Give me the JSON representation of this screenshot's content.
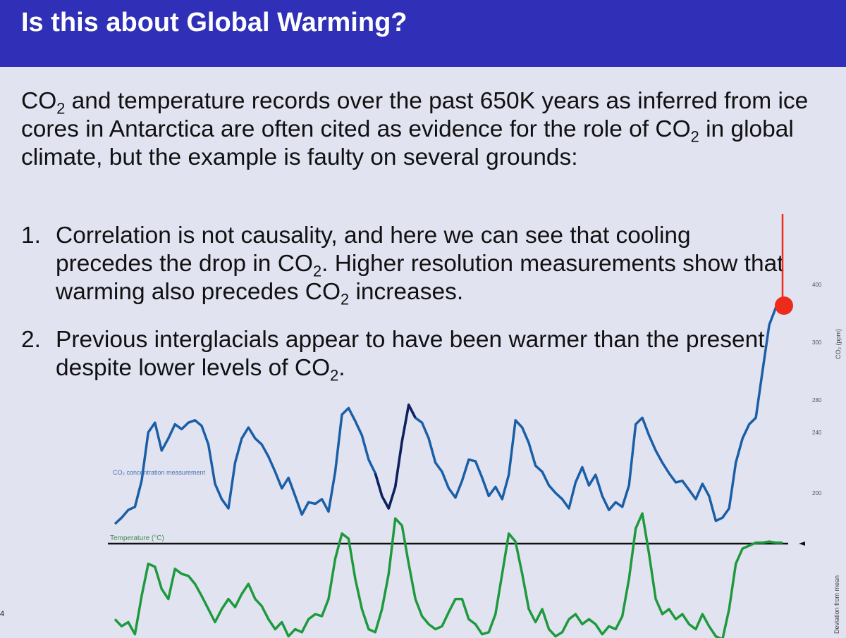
{
  "slide": {
    "title": "Is this about Global Warming?",
    "intro": {
      "p1": "CO",
      "s1": "2",
      "p2": " and temperature records over the past 650K years as inferred from ice cores in Antarctica are often cited as evidence for the role of CO",
      "s2": "2",
      "p3": " in global climate, but the example is faulty on several grounds:"
    },
    "items": [
      {
        "num": "1.",
        "p1": "Correlation is not causality, and here we can see that cooling precedes the drop in CO",
        "s1": "2",
        "p2": ". Higher resolution measurements show that warming also precedes CO",
        "s2": "2",
        "p3": " increases."
      },
      {
        "num": "2.",
        "p1": "Previous interglacials appear to have been warmer than the present despite lower levels of CO",
        "s1": "2",
        "p2": "."
      }
    ],
    "page_number": "4"
  },
  "colors": {
    "title_bar": "#2f2fb7",
    "background": "#e2e3f1",
    "co2_line": "#1a5fa6",
    "co2_line_dark": "#10205e",
    "temperature_line": "#1d9a3c",
    "current_marker": "#ee2a1a",
    "zero_line": "#111111"
  },
  "chart_data": {
    "type": "line",
    "co2_series_label": "CO₂ concentration measurement",
    "temperature_series_label": "Temperature (°C)",
    "right_axis_label_co2": "CO₂ (ppm)",
    "right_axis_label_temp": "Deviation from mean",
    "co2_axis_ticks": [
      400,
      300,
      280,
      240,
      200
    ],
    "x_range": [
      0,
      100
    ],
    "co2": {
      "x": [
        0,
        1,
        2,
        3,
        4,
        5,
        6,
        7,
        8,
        9,
        10,
        11,
        12,
        13,
        14,
        15,
        16,
        17,
        18,
        19,
        20,
        21,
        22,
        23,
        24,
        25,
        26,
        27,
        28,
        29,
        30,
        31,
        32,
        33,
        34,
        35,
        36,
        37,
        38,
        39,
        40,
        41,
        42,
        43,
        44,
        45,
        46,
        47,
        48,
        49,
        50,
        51,
        52,
        53,
        54,
        55,
        56,
        57,
        58,
        59,
        60,
        61,
        62,
        63,
        64,
        65,
        66,
        67,
        68,
        69,
        70,
        71,
        72,
        73,
        74,
        75,
        76,
        77,
        78,
        79,
        80,
        81,
        82,
        83,
        84,
        85,
        86,
        87,
        88,
        89,
        90,
        91,
        92,
        93,
        94,
        95,
        96,
        97,
        98,
        99,
        100
      ],
      "y": [
        180,
        184,
        189,
        191,
        208,
        240,
        252,
        228,
        236,
        250,
        244,
        252,
        255,
        248,
        232,
        206,
        196,
        190,
        220,
        236,
        246,
        236,
        232,
        224,
        214,
        203,
        210,
        198,
        186,
        194,
        193,
        196,
        188,
        214,
        262,
        270,
        254,
        238,
        222,
        213,
        198,
        190,
        204,
        234,
        274,
        258,
        252,
        236,
        220,
        214,
        203,
        197,
        208,
        222,
        221,
        210,
        198,
        204,
        196,
        212,
        255,
        246,
        233,
        218,
        214,
        205,
        200,
        196,
        190,
        207,
        217,
        205,
        212,
        198,
        189,
        194,
        191,
        205,
        250,
        258,
        238,
        228,
        220,
        213,
        207,
        208,
        202,
        196,
        206,
        198,
        182,
        184,
        190,
        220,
        236,
        250,
        258,
        290,
        330,
        360,
        375
      ],
      "highlight_dark_x_range": [
        39,
        45
      ]
    },
    "temperature": {
      "x": [
        0,
        1,
        2,
        3,
        4,
        5,
        6,
        7,
        8,
        9,
        10,
        11,
        12,
        13,
        14,
        15,
        16,
        17,
        18,
        19,
        20,
        21,
        22,
        23,
        24,
        25,
        26,
        27,
        28,
        29,
        30,
        31,
        32,
        33,
        34,
        35,
        36,
        37,
        38,
        39,
        40,
        41,
        42,
        43,
        44,
        45,
        46,
        47,
        48,
        49,
        50,
        51,
        52,
        53,
        54,
        55,
        56,
        57,
        58,
        59,
        60,
        61,
        62,
        63,
        64,
        65,
        66,
        67,
        68,
        69,
        70,
        71,
        72,
        73,
        74,
        75,
        76,
        77,
        78,
        79,
        80,
        81,
        82,
        83,
        84,
        85,
        86,
        87,
        88,
        89,
        90,
        91,
        92,
        93,
        94,
        95,
        96,
        97,
        98,
        99,
        100
      ],
      "y": [
        -7.5,
        -8.2,
        -7.8,
        -9.0,
        -5.2,
        -2.0,
        -2.3,
        -4.5,
        -5.5,
        -2.5,
        -3.0,
        -3.2,
        -4.0,
        -5.2,
        -6.5,
        -7.8,
        -6.5,
        -5.5,
        -6.3,
        -5.0,
        -4.0,
        -5.5,
        -6.2,
        -7.5,
        -8.5,
        -7.8,
        -9.2,
        -8.5,
        -8.8,
        -7.5,
        -7.0,
        -7.2,
        -5.5,
        -1.5,
        1.0,
        0.5,
        -3.5,
        -6.5,
        -8.5,
        -8.8,
        -6.5,
        -3.0,
        2.5,
        1.8,
        -2.0,
        -5.5,
        -7.2,
        -8.0,
        -8.5,
        -8.2,
        -6.8,
        -5.5,
        -5.5,
        -7.5,
        -8.0,
        -9.0,
        -8.8,
        -7.0,
        -3.0,
        1.0,
        0.2,
        -3.0,
        -6.5,
        -7.8,
        -6.5,
        -8.5,
        -9.2,
        -8.8,
        -7.5,
        -7.0,
        -8.0,
        -7.5,
        -8.0,
        -9.0,
        -8.2,
        -8.5,
        -7.2,
        -3.5,
        1.5,
        3.0,
        -1.0,
        -5.5,
        -7.0,
        -6.5,
        -7.5,
        -7.0,
        -8.0,
        -8.5,
        -7.0,
        -8.2,
        -9.2,
        -9.5,
        -6.5,
        -2.0,
        -0.5,
        -0.2,
        0.1,
        0.1,
        0.2,
        0.1,
        0.1
      ]
    }
  }
}
